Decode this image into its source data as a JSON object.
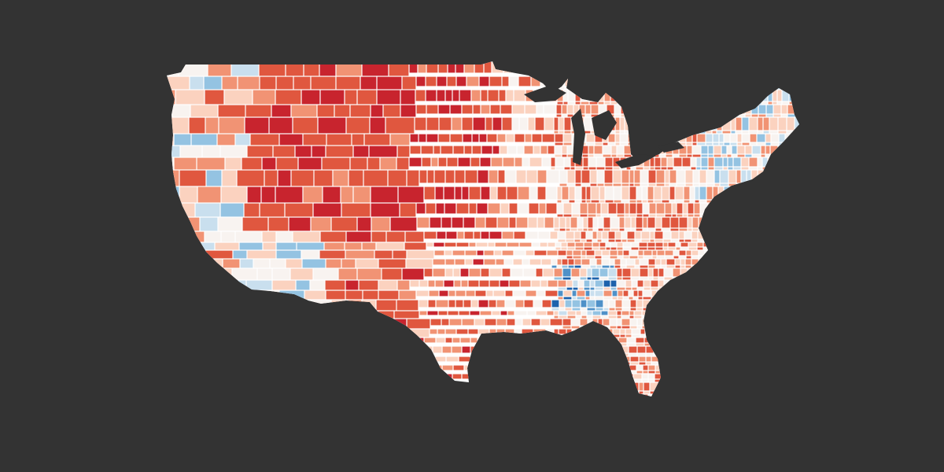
{
  "map": {
    "type": "choropleth",
    "subject": "counties",
    "projection": "conus",
    "background_color": "#333333",
    "border_color": "#ffffff",
    "dense_region_fill": "#b5293a",
    "palette": {
      "dark_red": "#a50f24",
      "red": "#c8242e",
      "mid_red": "#e0573f",
      "light_red": "#f19374",
      "pale_red": "#fbd2bf",
      "white": "#f8f3f0",
      "pale_blue": "#c9dfee",
      "light_blue": "#94c3e2",
      "blue": "#4f91c8",
      "dark_blue": "#1d62ac"
    }
  }
}
